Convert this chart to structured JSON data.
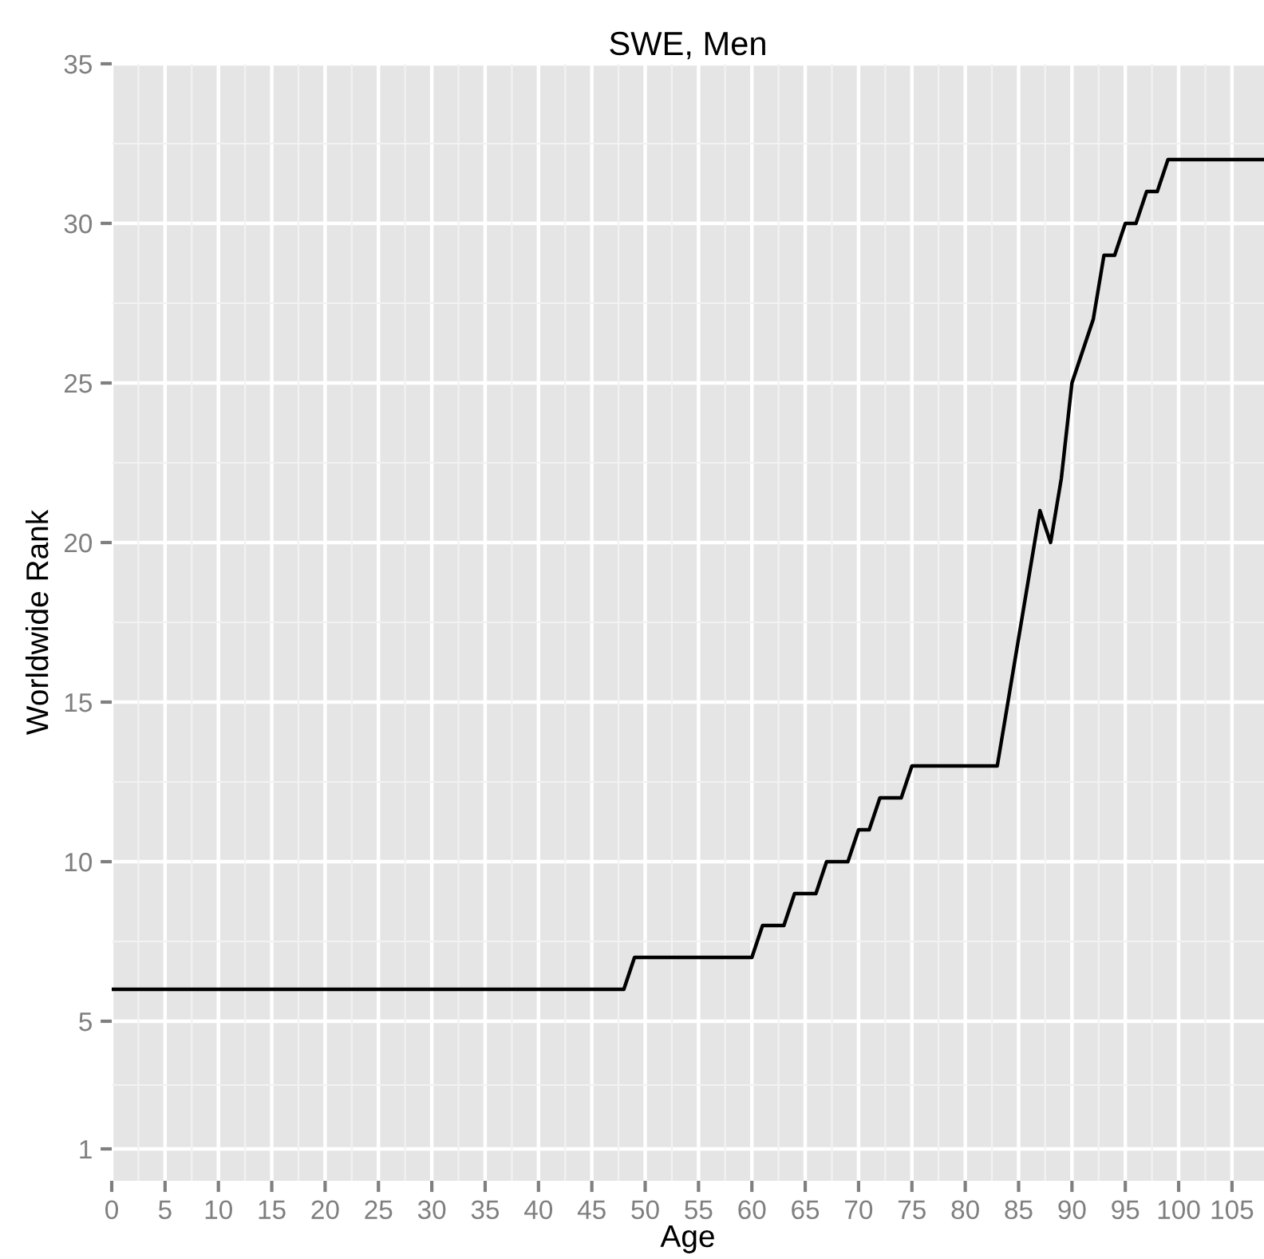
{
  "chart_data": {
    "type": "line",
    "title": "SWE, Men",
    "xlabel": "Age",
    "ylabel": "Worldwide Rank",
    "x": [
      0,
      48,
      49,
      60,
      61,
      63,
      64,
      66,
      67,
      69,
      70,
      71,
      72,
      74,
      75,
      83,
      87,
      88,
      89,
      90,
      92,
      93,
      94,
      95,
      96,
      97,
      98,
      99,
      108
    ],
    "series": [
      {
        "color": "#000000",
        "values": [
          6,
          6,
          7,
          7,
          8,
          8,
          9,
          9,
          10,
          10,
          11,
          11,
          12,
          12,
          13,
          13,
          21,
          20,
          22,
          25,
          27,
          29,
          29,
          30,
          30,
          31,
          31,
          32,
          32
        ]
      }
    ],
    "xlim": [
      0,
      108
    ],
    "ylim": [
      0,
      35
    ],
    "xticks": [
      0,
      5,
      10,
      15,
      20,
      25,
      30,
      35,
      40,
      45,
      50,
      55,
      60,
      65,
      70,
      75,
      80,
      85,
      90,
      95,
      100,
      105
    ],
    "yticks": [
      1,
      5,
      10,
      15,
      20,
      25,
      30,
      35
    ],
    "grid": true,
    "marker": "none",
    "line_style": "solid"
  }
}
